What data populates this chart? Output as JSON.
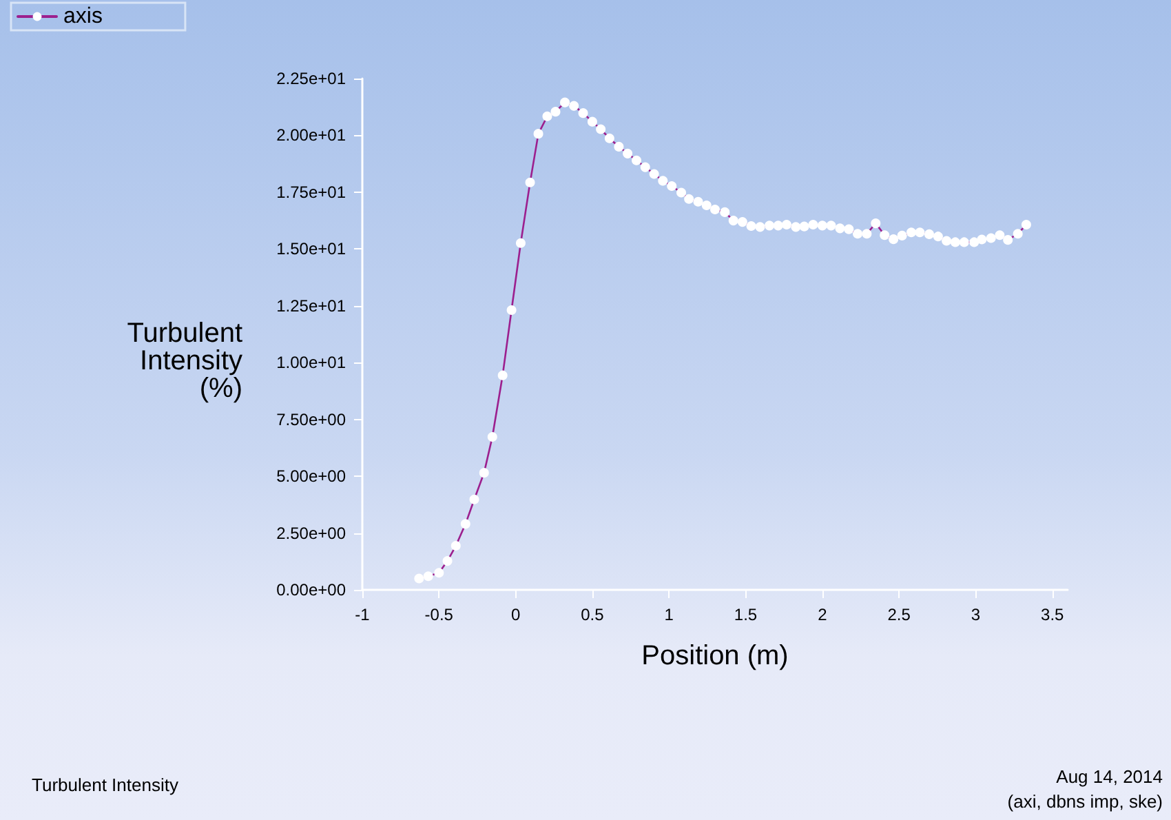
{
  "chart_data": {
    "type": "line",
    "title": "Turbulent Intensity",
    "xlabel": "Position (m)",
    "ylabel": "Turbulent Intensity (%)",
    "annotations": [
      "Aug 14, 2014",
      "(axi, dbns imp, ske)"
    ],
    "xlim": [
      -1,
      3.6
    ],
    "xticks": [
      -1,
      -0.5,
      0,
      0.5,
      1,
      1.5,
      2,
      2.5,
      3,
      3.5
    ],
    "ylim": [
      0,
      22.5
    ],
    "yticks": [
      {
        "value": 0,
        "label": "0.00e+00"
      },
      {
        "value": 2.5,
        "label": "2.50e+00"
      },
      {
        "value": 5,
        "label": "5.00e+00"
      },
      {
        "value": 7.5,
        "label": "7.50e+00"
      },
      {
        "value": 10,
        "label": "1.00e+01"
      },
      {
        "value": 12.5,
        "label": "1.25e+01"
      },
      {
        "value": 15,
        "label": "1.50e+01"
      },
      {
        "value": 17.5,
        "label": "1.75e+01"
      },
      {
        "value": 20,
        "label": "2.00e+01"
      },
      {
        "value": 22.5,
        "label": "2.25e+01"
      }
    ],
    "grid": false,
    "legend": "top left",
    "marker": "circle",
    "line_style": "solid",
    "series": [
      {
        "name": "axis",
        "color": "#9c1f8e",
        "x": [
          -0.63,
          -0.57,
          -0.5,
          -0.445,
          -0.39,
          -0.327,
          -0.27,
          -0.206,
          -0.152,
          -0.085,
          -0.027,
          0.033,
          0.094,
          0.148,
          0.206,
          0.26,
          0.321,
          0.38,
          0.44,
          0.5,
          0.555,
          0.612,
          0.673,
          0.73,
          0.788,
          0.845,
          0.903,
          0.96,
          1.018,
          1.08,
          1.13,
          1.19,
          1.245,
          1.3,
          1.364,
          1.42,
          1.479,
          1.536,
          1.594,
          1.655,
          1.712,
          1.767,
          1.827,
          1.882,
          1.94,
          2.0,
          2.057,
          2.115,
          2.173,
          2.23,
          2.29,
          2.348,
          2.406,
          2.464,
          2.52,
          2.58,
          2.636,
          2.697,
          2.755,
          2.81,
          2.867,
          2.925,
          2.99,
          3.04,
          3.1,
          3.157,
          3.21,
          3.275,
          3.33
        ],
        "values": [
          0.5,
          0.6,
          0.75,
          1.27,
          1.94,
          2.9,
          3.98,
          5.15,
          6.73,
          9.44,
          12.31,
          15.26,
          17.93,
          20.07,
          20.84,
          21.04,
          21.45,
          21.3,
          20.98,
          20.6,
          20.27,
          19.87,
          19.5,
          19.2,
          18.9,
          18.6,
          18.3,
          18.0,
          17.77,
          17.48,
          17.2,
          17.08,
          16.92,
          16.74,
          16.62,
          16.25,
          16.19,
          16.01,
          15.97,
          16.03,
          16.03,
          16.07,
          15.97,
          15.99,
          16.07,
          16.03,
          16.03,
          15.91,
          15.87,
          15.67,
          15.67,
          16.13,
          15.61,
          15.43,
          15.59,
          15.73,
          15.73,
          15.65,
          15.55,
          15.36,
          15.3,
          15.3,
          15.3,
          15.42,
          15.48,
          15.61,
          15.4,
          15.67,
          16.07
        ]
      }
    ]
  }
}
